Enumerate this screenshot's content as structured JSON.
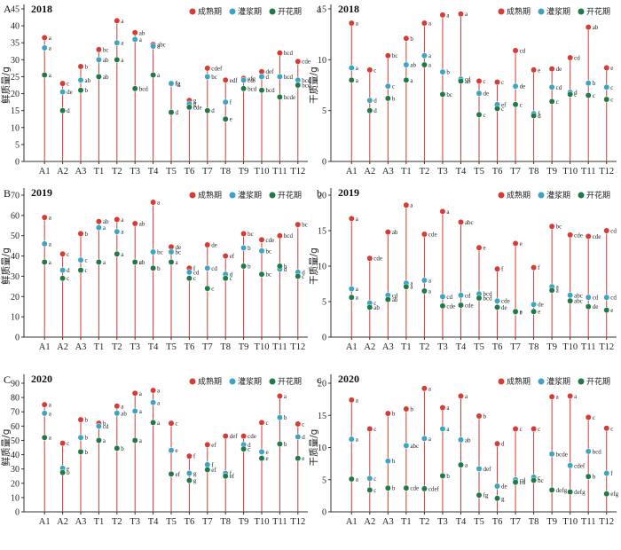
{
  "legend": {
    "series": [
      {
        "name": "成熟期",
        "color": "#d63b34"
      },
      {
        "name": "灌浆期",
        "color": "#3aa6c4"
      },
      {
        "name": "开花期",
        "color": "#1f7a4a"
      }
    ]
  },
  "chart_data": [
    {
      "type": "lollipop",
      "panel": "A",
      "year": "2018",
      "ylabel": "鲜质量/g",
      "categories": [
        "A1",
        "A2",
        "A3",
        "T1",
        "T2",
        "T3",
        "T4",
        "T5",
        "T6",
        "T7",
        "T8",
        "T9",
        "T10",
        "T11",
        "T12"
      ],
      "ylim": [
        0,
        45
      ],
      "yticks": [
        0,
        5,
        10,
        15,
        20,
        25,
        30,
        35,
        40,
        45
      ],
      "series": [
        {
          "name": "成熟期",
          "values": [
            36.5,
            23,
            28,
            33,
            41.5,
            38,
            34.5,
            23,
            18,
            27.5,
            24,
            24.5,
            26.5,
            32,
            29.5
          ],
          "labels": [
            "a",
            "c",
            "b",
            "bc",
            "a",
            "ab",
            "abc",
            "fg",
            "g",
            "cdef",
            "edf",
            "efg",
            "def",
            "bcd",
            "cde"
          ]
        },
        {
          "name": "灌浆期",
          "values": [
            33.5,
            20.5,
            24,
            30,
            35,
            36,
            34,
            23,
            17,
            25,
            17.5,
            24,
            25,
            25,
            24
          ],
          "labels": [
            "a",
            "de",
            "ab",
            "ab",
            "a",
            "a",
            "a",
            "fg",
            "g",
            "bc",
            "f",
            "cd",
            "d",
            "bcd",
            "bcd"
          ]
        },
        {
          "name": "开花期",
          "values": [
            25.5,
            15,
            21,
            25,
            30,
            21.5,
            25.5,
            14.5,
            16,
            15,
            12.5,
            21.5,
            21,
            19,
            22.5
          ],
          "labels": [
            "a",
            "d",
            "b",
            "ab",
            "a",
            "bcd",
            "a",
            "d",
            "cde",
            "d",
            "e",
            "bcd",
            "bcd",
            "bcde",
            "bcd"
          ]
        }
      ]
    },
    {
      "type": "lollipop",
      "panel": "a",
      "year": "2018",
      "ylabel": "干质量/g",
      "categories": [
        "A1",
        "A2",
        "A3",
        "T1",
        "T2",
        "T3",
        "T4",
        "T5",
        "T6",
        "T7",
        "T8",
        "T9",
        "T10",
        "T11",
        "T12"
      ],
      "ylim": [
        0,
        15
      ],
      "yticks": [
        0,
        5,
        10,
        15
      ],
      "series": [
        {
          "name": "成熟期",
          "values": [
            13.6,
            9,
            10.4,
            12.1,
            13.6,
            14.4,
            14.5,
            7.9,
            7.8,
            10.9,
            9,
            9.1,
            10.2,
            13.2,
            9.2
          ],
          "labels": [
            "a",
            "c",
            "bc",
            "b",
            "a",
            "a",
            "a",
            "c",
            "c",
            "cd",
            "e",
            "de",
            "cd",
            "ab",
            "e"
          ]
        },
        {
          "name": "灌浆期",
          "values": [
            9.2,
            6,
            7.4,
            9.5,
            10.4,
            8.8,
            8.1,
            6.7,
            5.6,
            7.4,
            4.7,
            7.3,
            6.8,
            7.7,
            7.3
          ],
          "labels": [
            "a",
            "d",
            "c",
            "ab",
            "a",
            "b",
            "cd",
            "de",
            "ef",
            "de",
            "f",
            "cd",
            "d",
            "b",
            "c"
          ]
        },
        {
          "name": "开花期",
          "values": [
            8,
            5,
            6.2,
            8,
            9.5,
            6.6,
            7.9,
            4.6,
            5.2,
            5.6,
            4.5,
            5.9,
            6.6,
            6.5,
            6.1
          ],
          "labels": [
            "a",
            "d",
            "b",
            "a",
            "a",
            "bc",
            "ab",
            "c",
            "c",
            "c",
            "d",
            "c",
            "c",
            "c",
            "c"
          ]
        }
      ]
    },
    {
      "type": "lollipop",
      "panel": "B",
      "year": "2019",
      "ylabel": "鲜质量/g",
      "categories": [
        "A1",
        "A2",
        "A3",
        "T1",
        "T2",
        "T3",
        "T4",
        "T5",
        "T6",
        "T7",
        "T8",
        "T9",
        "T10",
        "T11",
        "T12"
      ],
      "ylim": [
        0,
        70
      ],
      "yticks": [
        0,
        10,
        20,
        30,
        40,
        50,
        60,
        70
      ],
      "series": [
        {
          "name": "成熟期",
          "values": [
            59,
            41,
            51,
            57,
            58,
            56,
            66.5,
            44.5,
            34,
            45.5,
            40,
            51,
            48,
            50,
            55.5
          ],
          "labels": [
            "a",
            "c",
            "b",
            "ab",
            "a",
            "ab",
            "a",
            "de",
            "f",
            "de",
            "ef",
            "bc",
            "cde",
            "bcd",
            "bc"
          ]
        },
        {
          "name": "灌浆期",
          "values": [
            46,
            33,
            38,
            54,
            52,
            37,
            42,
            42,
            32,
            34,
            31,
            44,
            42.5,
            33.5,
            32
          ],
          "labels": [
            "a",
            "d",
            "c",
            "a",
            "a",
            "c",
            "bc",
            "bc",
            "cd",
            "cd",
            "d",
            "b",
            "bc",
            "d",
            "d"
          ]
        },
        {
          "name": "开花期",
          "values": [
            37,
            29,
            33,
            37,
            41,
            37,
            34,
            37,
            29,
            24,
            29,
            35,
            31,
            35,
            30
          ],
          "labels": [
            "a",
            "c",
            "c",
            "a",
            "a",
            "ab",
            "b",
            "a",
            "c",
            "c",
            "c",
            "b",
            "bc",
            "b",
            "c"
          ]
        }
      ]
    },
    {
      "type": "lollipop",
      "panel": "b",
      "year": "2019",
      "ylabel": "干质量/g",
      "categories": [
        "A1",
        "A2",
        "A3",
        "T1",
        "T2",
        "T3",
        "T4",
        "T5",
        "T6",
        "T7",
        "T8",
        "T9",
        "T10",
        "T11",
        "T12"
      ],
      "ylim": [
        0,
        20
      ],
      "yticks": [
        0,
        5,
        10,
        15,
        20
      ],
      "series": [
        {
          "name": "成熟期",
          "values": [
            16.7,
            11.1,
            14.8,
            18.6,
            14.5,
            17.7,
            16.2,
            12.6,
            9.6,
            13.2,
            9.8,
            15.6,
            14.4,
            14.2,
            15
          ],
          "labels": [
            "a",
            "cde",
            "ab",
            "a",
            "cde",
            "a",
            "abc",
            "e",
            "f",
            "e",
            "f",
            "bc",
            "cde",
            "cde",
            "cd"
          ]
        },
        {
          "name": "灌浆期",
          "values": [
            6.8,
            4.8,
            5.9,
            7.6,
            8,
            5.7,
            5.9,
            6.1,
            5.1,
            3.5,
            4.6,
            7.1,
            5.9,
            5.6,
            5.6
          ],
          "labels": [
            "a",
            "c",
            "cd",
            "a",
            "a",
            "cd",
            "cd",
            "bcd",
            "cde",
            "e",
            "de",
            "a",
            "abc",
            "cd",
            "cd"
          ]
        },
        {
          "name": "开花期",
          "values": [
            5.6,
            4.2,
            5.3,
            7.1,
            6.5,
            4.4,
            4.5,
            5.5,
            4.2,
            3.6,
            3.6,
            6.6,
            5.1,
            4.3,
            3.8
          ],
          "labels": [
            "a",
            "ab",
            "ab",
            "a",
            "a",
            "cde",
            "cde",
            "bcd",
            "de",
            "e",
            "e",
            "a",
            "abc",
            "de",
            "e"
          ]
        }
      ]
    },
    {
      "type": "lollipop",
      "panel": "C",
      "year": "2020",
      "ylabel": "鲜质量/g",
      "categories": [
        "A1",
        "A2",
        "A3",
        "T1",
        "T2",
        "T3",
        "T4",
        "T5",
        "T6",
        "T7",
        "T8",
        "T9",
        "T10",
        "T11",
        "T12"
      ],
      "ylim": [
        0,
        90
      ],
      "yticks": [
        0,
        10,
        20,
        30,
        40,
        50,
        60,
        70,
        80,
        90
      ],
      "series": [
        {
          "name": "成熟期",
          "values": [
            75,
            48,
            64.5,
            62,
            74,
            83,
            85,
            62,
            39,
            47,
            53,
            53,
            62.5,
            81,
            61.5
          ],
          "labels": [
            "a",
            "c",
            "b",
            "b",
            "a",
            "a",
            "a",
            "c",
            "f",
            "ef",
            "def",
            "cde",
            "c",
            "a",
            "c"
          ]
        },
        {
          "name": "灌浆期",
          "values": [
            69,
            30.5,
            52,
            60,
            69,
            70.5,
            76.5,
            43,
            27,
            33,
            27,
            47,
            42,
            66,
            52.5
          ],
          "labels": [
            "a",
            "e",
            "b",
            "cd",
            "ab",
            "a",
            "a",
            "e",
            "g",
            "f",
            "f",
            "d",
            "e",
            "b",
            "d"
          ]
        },
        {
          "name": "开花期",
          "values": [
            52,
            27.5,
            42,
            50,
            44.5,
            50,
            62.5,
            26.5,
            22,
            29.5,
            25,
            44,
            37.5,
            47.5,
            37.5
          ],
          "labels": [
            "a",
            "b",
            "b",
            "a",
            "b",
            "a",
            "a",
            "ef",
            "g",
            "ef",
            "ef",
            "c",
            "e",
            "b",
            "e"
          ]
        }
      ]
    },
    {
      "type": "lollipop",
      "panel": "c",
      "year": "2020",
      "ylabel": "干质量/g",
      "categories": [
        "A1",
        "A2",
        "A3",
        "T1",
        "T2",
        "T3",
        "T4",
        "T5",
        "T6",
        "T7",
        "T8",
        "T9",
        "T10",
        "T11",
        "T12"
      ],
      "ylim": [
        0,
        20
      ],
      "yticks": [
        0,
        5,
        10,
        15,
        20
      ],
      "series": [
        {
          "name": "成熟期",
          "values": [
            17.4,
            12.9,
            15.3,
            16,
            19.2,
            16.2,
            18,
            14.9,
            10.6,
            12.9,
            12.9,
            17.9,
            18,
            14.7,
            13
          ],
          "labels": [
            "a",
            "c",
            "b",
            "b",
            "a",
            "a",
            "a",
            "b",
            "d",
            "c",
            "c",
            "a",
            "a",
            "c",
            "c"
          ]
        },
        {
          "name": "灌浆期",
          "values": [
            11.3,
            5.2,
            7.9,
            10.3,
            11.4,
            12.9,
            11.2,
            6.7,
            4,
            5,
            5.4,
            9,
            7.2,
            9.4,
            6
          ],
          "labels": [
            "a",
            "c",
            "b",
            "abc",
            "a",
            "a",
            "ab",
            "def",
            "de",
            "cd",
            "c",
            "bcde",
            "cdef",
            "bcd",
            "f"
          ]
        },
        {
          "name": "开花期",
          "values": [
            5.1,
            3.4,
            3.7,
            3.7,
            3.6,
            5.6,
            7.3,
            2.6,
            2.1,
            4.6,
            4.9,
            3.4,
            3.1,
            5.5,
            2.8
          ],
          "labels": [
            "a",
            "c",
            "b",
            "cde",
            "cdef",
            "b",
            "a",
            "fg",
            "g",
            "cd",
            "bc",
            "defg",
            "defg",
            "b",
            "efg"
          ]
        }
      ]
    }
  ]
}
